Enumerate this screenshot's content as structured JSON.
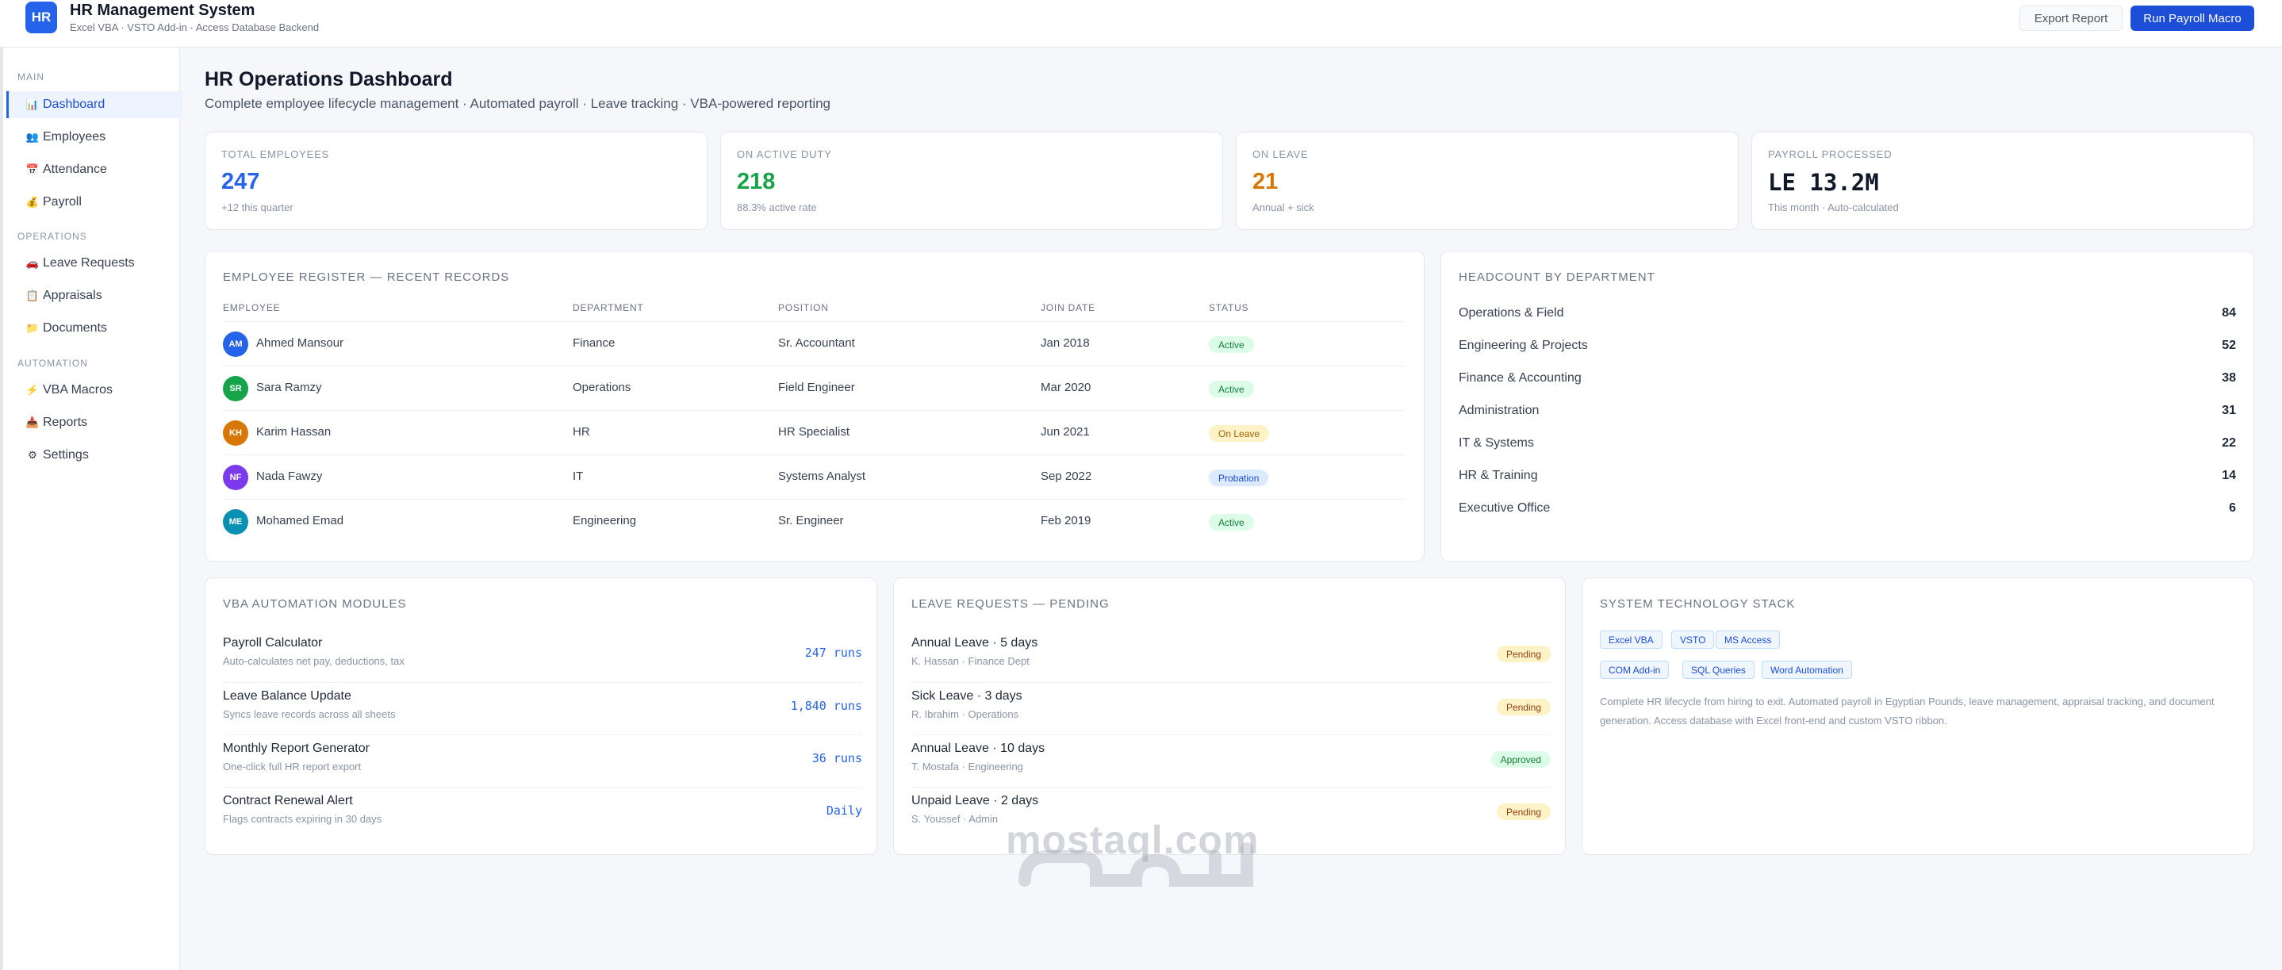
{
  "header": {
    "logo_text": "HR",
    "title": "HR Management System",
    "subtitle": "Excel VBA · VSTO Add-in · Access Database Backend",
    "export_label": "Export Report",
    "run_label": "Run Payroll Macro"
  },
  "sidebar": {
    "sections": [
      {
        "label": "MAIN",
        "items": [
          {
            "label": "Dashboard",
            "icon": "chart-icon",
            "glyph": "📊"
          },
          {
            "label": "Employees",
            "icon": "users-icon",
            "glyph": "👥"
          },
          {
            "label": "Attendance",
            "icon": "calendar-icon",
            "glyph": "📅"
          },
          {
            "label": "Payroll",
            "icon": "money-bag-icon",
            "glyph": "💰"
          }
        ]
      },
      {
        "label": "OPERATIONS",
        "items": [
          {
            "label": "Leave Requests",
            "icon": "car-icon",
            "glyph": "🚗"
          },
          {
            "label": "Appraisals",
            "icon": "clipboard-icon",
            "glyph": "📋"
          },
          {
            "label": "Documents",
            "icon": "folder-icon",
            "glyph": "📁"
          }
        ]
      },
      {
        "label": "AUTOMATION",
        "items": [
          {
            "label": "VBA Macros",
            "icon": "lightning-icon",
            "glyph": "⚡"
          },
          {
            "label": "Reports",
            "icon": "inbox-icon",
            "glyph": "📥"
          },
          {
            "label": "Settings",
            "icon": "gear-icon",
            "glyph": "⚙"
          }
        ]
      }
    ]
  },
  "page": {
    "title": "HR Operations Dashboard",
    "subtitle": "Complete employee lifecycle management · Automated payroll · Leave tracking · VBA-powered reporting"
  },
  "stats": [
    {
      "label": "TOTAL EMPLOYEES",
      "value": "247",
      "note": "+12 this quarter",
      "color": "#2563eb"
    },
    {
      "label": "ON ACTIVE DUTY",
      "value": "218",
      "note": "88.3% active rate",
      "color": "#16a34a"
    },
    {
      "label": "ON LEAVE",
      "value": "21",
      "note": "Annual + sick",
      "color": "#d97706"
    },
    {
      "label": "PAYROLL PROCESSED",
      "value": "LE 13.2M",
      "note": "This month · Auto-calculated",
      "color": "#111827"
    }
  ],
  "register": {
    "title": "EMPLOYEE REGISTER — RECENT RECORDS",
    "columns": [
      "EMPLOYEE",
      "DEPARTMENT",
      "POSITION",
      "JOIN DATE",
      "STATUS"
    ],
    "rows": [
      {
        "initials": "AM",
        "name": "Ahmed Mansour",
        "department": "Finance",
        "position": "Sr. Accountant",
        "join": "Jan 2018",
        "status": "Active",
        "avatar_color": "#2563eb"
      },
      {
        "initials": "SR",
        "name": "Sara Ramzy",
        "department": "Operations",
        "position": "Field Engineer",
        "join": "Mar 2020",
        "status": "Active",
        "avatar_color": "#16a34a"
      },
      {
        "initials": "KH",
        "name": "Karim Hassan",
        "department": "HR",
        "position": "HR Specialist",
        "join": "Jun 2021",
        "status": "On Leave",
        "avatar_color": "#d97706"
      },
      {
        "initials": "NF",
        "name": "Nada Fawzy",
        "department": "IT",
        "position": "Systems Analyst",
        "join": "Sep 2022",
        "status": "Probation",
        "avatar_color": "#7c3aed"
      },
      {
        "initials": "ME",
        "name": "Mohamed Emad",
        "department": "Engineering",
        "position": "Sr. Engineer",
        "join": "Feb 2019",
        "status": "Active",
        "avatar_color": "#0891b2"
      }
    ]
  },
  "headcount": {
    "title": "HEADCOUNT BY DEPARTMENT",
    "rows": [
      {
        "name": "Operations & Field",
        "count": "84"
      },
      {
        "name": "Engineering & Projects",
        "count": "52"
      },
      {
        "name": "Finance & Accounting",
        "count": "38"
      },
      {
        "name": "Administration",
        "count": "31"
      },
      {
        "name": "IT & Systems",
        "count": "22"
      },
      {
        "name": "HR & Training",
        "count": "14"
      },
      {
        "name": "Executive Office",
        "count": "6"
      }
    ]
  },
  "modules": {
    "title": "VBA AUTOMATION MODULES",
    "rows": [
      {
        "name": "Payroll Calculator",
        "desc": "Auto-calculates net pay, deductions, tax",
        "runs": "247 runs"
      },
      {
        "name": "Leave Balance Update",
        "desc": "Syncs leave records across all sheets",
        "runs": "1,840 runs"
      },
      {
        "name": "Monthly Report Generator",
        "desc": "One-click full HR report export",
        "runs": "36 runs"
      },
      {
        "name": "Contract Renewal Alert",
        "desc": "Flags contracts expiring in 30 days",
        "runs": "Daily"
      }
    ]
  },
  "leaves": {
    "title": "LEAVE REQUESTS — PENDING",
    "rows": [
      {
        "name": "Annual Leave · 5 days",
        "who": "K. Hassan · Finance Dept",
        "status": "Pending"
      },
      {
        "name": "Sick Leave · 3 days",
        "who": "R. Ibrahim · Operations",
        "status": "Pending"
      },
      {
        "name": "Annual Leave · 10 days",
        "who": "T. Mostafa · Engineering",
        "status": "Approved"
      },
      {
        "name": "Unpaid Leave · 2 days",
        "who": "S. Youssef · Admin",
        "status": "Pending"
      }
    ]
  },
  "tech": {
    "title": "SYSTEM TECHNOLOGY STACK",
    "tags": [
      "Excel VBA",
      "VSTO",
      "MS Access",
      "COM Add-in",
      "SQL Queries",
      "Word Automation"
    ],
    "description": "Complete HR lifecycle from hiring to exit. Automated payroll in Egyptian Pounds, leave management, appraisal tracking, and document generation. Access database with Excel front-end and custom VSTO ribbon."
  },
  "watermark": {
    "text": "mostaql.com"
  }
}
